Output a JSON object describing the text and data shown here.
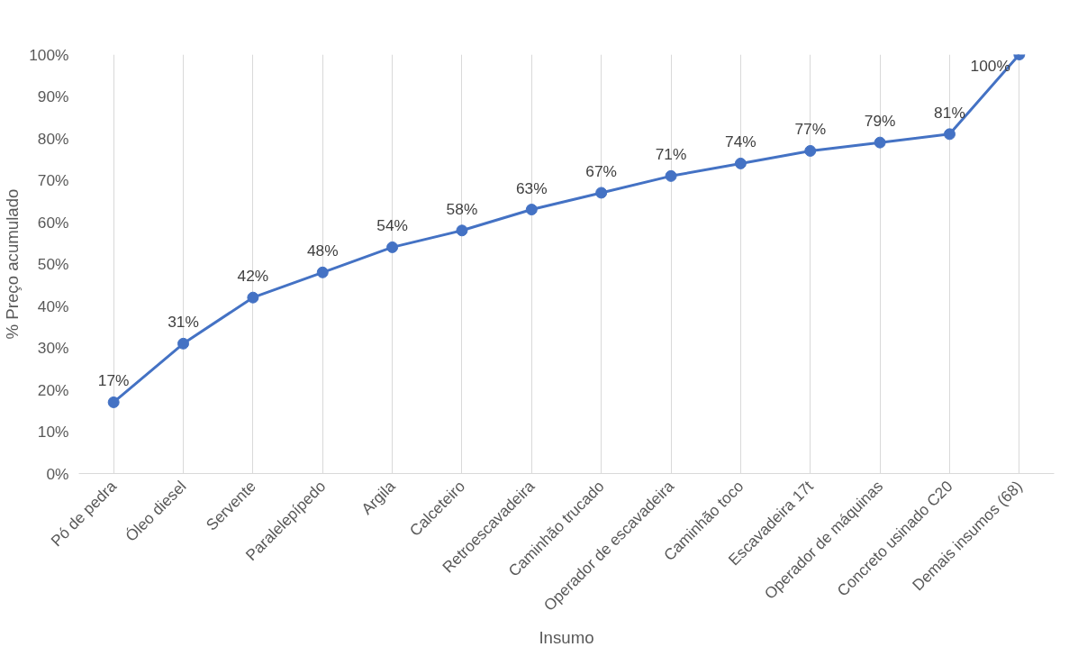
{
  "chart_data": {
    "type": "line",
    "xlabel": "Insumo",
    "ylabel": "% Preço acumulado",
    "categories": [
      "Pó de pedra",
      "Óleo diesel",
      "Servente",
      "Paralelepípedo",
      "Argila",
      "Calceteiro",
      "Retroescavadeira",
      "Caminhão trucado",
      "Operador de escavadeira",
      "Caminhão toco",
      "Escavadeira 17t",
      "Operador de máquinas",
      "Concreto usinado C20",
      "Demais insumos (68)"
    ],
    "series": [
      {
        "color": "#4472c4",
        "values": [
          17,
          31,
          42,
          48,
          54,
          58,
          63,
          67,
          71,
          74,
          77,
          79,
          81,
          100
        ],
        "value_labels": [
          "17%",
          "31%",
          "42%",
          "48%",
          "54%",
          "58%",
          "63%",
          "67%",
          "71%",
          "74%",
          "77%",
          "79%",
          "81%",
          "100%"
        ]
      }
    ],
    "ylim": [
      0,
      100
    ],
    "yticks": [
      {
        "value": 0,
        "label": "0%"
      },
      {
        "value": 10,
        "label": "10%"
      },
      {
        "value": 20,
        "label": "20%"
      },
      {
        "value": 30,
        "label": "30%"
      },
      {
        "value": 40,
        "label": "40%"
      },
      {
        "value": 50,
        "label": "50%"
      },
      {
        "value": 60,
        "label": "60%"
      },
      {
        "value": 70,
        "label": "70%"
      },
      {
        "value": 80,
        "label": "80%"
      },
      {
        "value": 90,
        "label": "90%"
      },
      {
        "value": 100,
        "label": "100%"
      }
    ],
    "grid": "x",
    "marker": "circle",
    "line_style": "solid"
  }
}
